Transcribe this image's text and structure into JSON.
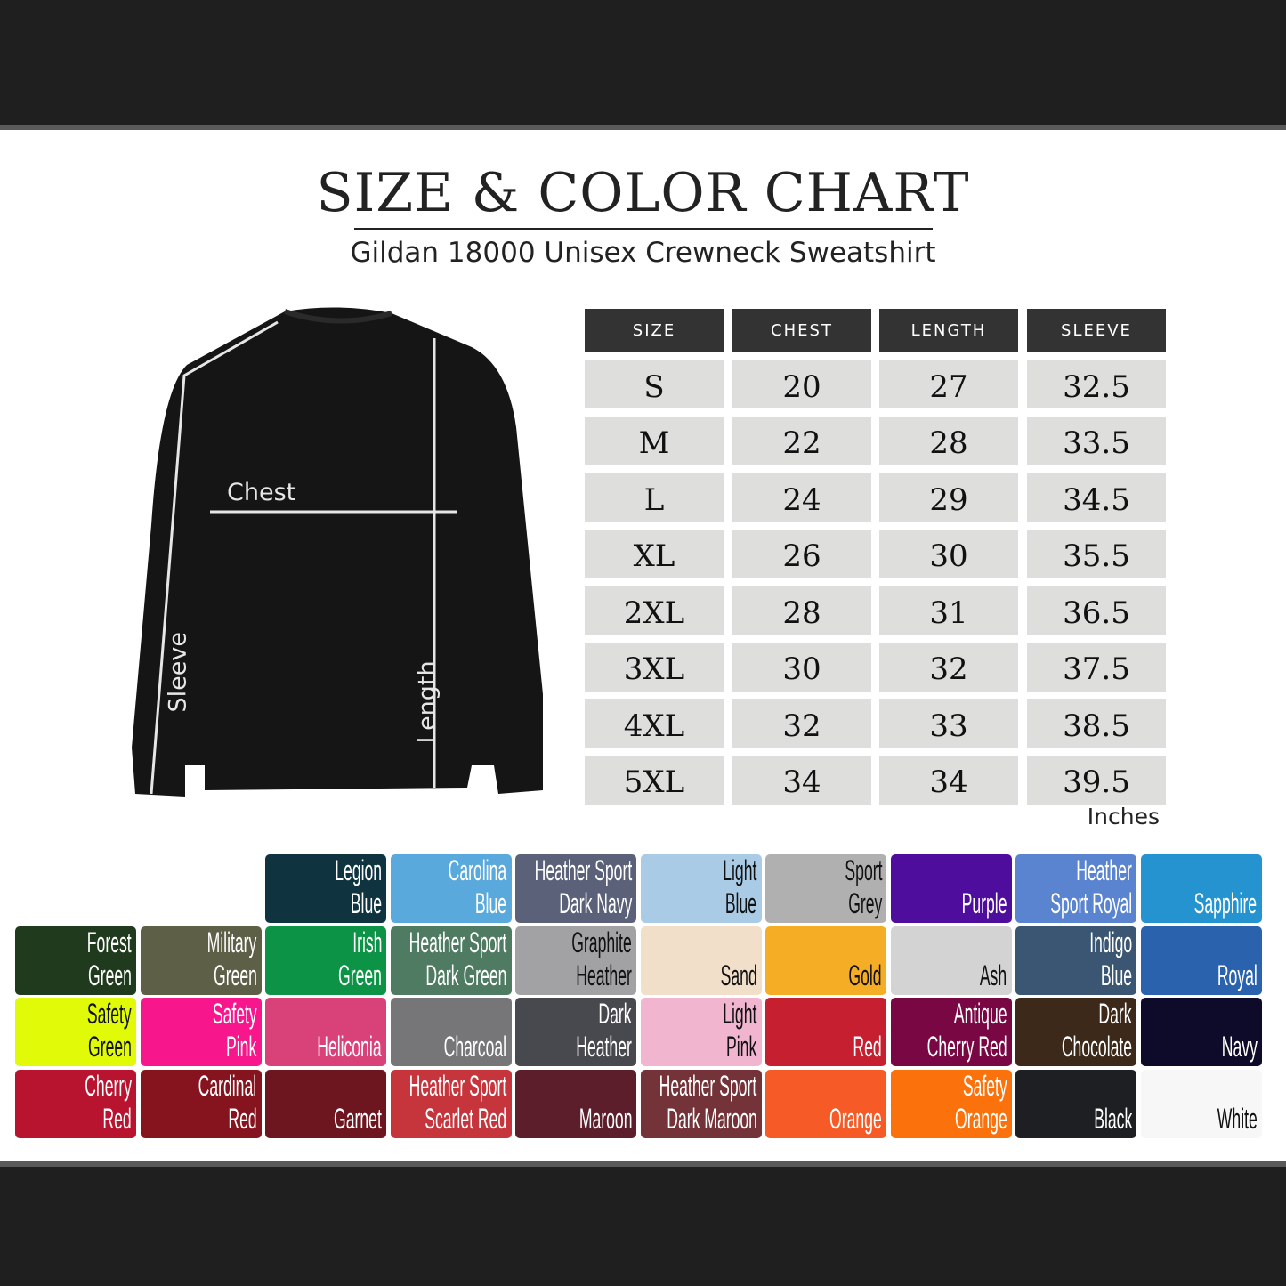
{
  "header": {
    "title": "SIZE & COLOR CHART",
    "subtitle": "Gildan 18000 Unisex Crewneck Sweatshirt"
  },
  "diagram": {
    "chest_label": "Chest",
    "sleeve_label": "Sleeve",
    "length_label": "Length",
    "shirt_color": "#151515"
  },
  "size_table": {
    "headers": [
      "SIZE",
      "CHEST",
      "LENGTH",
      "SLEEVE"
    ],
    "rows": [
      [
        "S",
        "20",
        "27",
        "32.5"
      ],
      [
        "M",
        "22",
        "28",
        "33.5"
      ],
      [
        "L",
        "24",
        "29",
        "34.5"
      ],
      [
        "XL",
        "26",
        "30",
        "35.5"
      ],
      [
        "2XL",
        "28",
        "31",
        "36.5"
      ],
      [
        "3XL",
        "30",
        "32",
        "37.5"
      ],
      [
        "4XL",
        "32",
        "33",
        "38.5"
      ],
      [
        "5XL",
        "34",
        "34",
        "39.5"
      ]
    ],
    "unit": "Inches"
  },
  "colors": [
    {
      "lines": [
        "Legion",
        "Blue"
      ],
      "hex": "#0f3440",
      "text": "#fff"
    },
    {
      "lines": [
        "Carolina",
        "Blue"
      ],
      "hex": "#5aa9dc",
      "text": "#fff"
    },
    {
      "lines": [
        "Heather Sport",
        "Dark Navy"
      ],
      "hex": "#5a6178",
      "text": "#fff"
    },
    {
      "lines": [
        "Light",
        "Blue"
      ],
      "hex": "#a9cbe6",
      "text": "#111"
    },
    {
      "lines": [
        "Sport",
        "Grey"
      ],
      "hex": "#b0b0b0",
      "text": "#111"
    },
    {
      "lines": [
        "Purple"
      ],
      "hex": "#4e0d9c",
      "text": "#fff"
    },
    {
      "lines": [
        "Heather",
        "Sport Royal"
      ],
      "hex": "#5a84cf",
      "text": "#fff"
    },
    {
      "lines": [
        "Sapphire"
      ],
      "hex": "#2593cf",
      "text": "#fff"
    },
    {
      "lines": [
        "Forest",
        "Green"
      ],
      "hex": "#1f3a1c",
      "text": "#fff"
    },
    {
      "lines": [
        "Military",
        "Green"
      ],
      "hex": "#5e5f47",
      "text": "#fff"
    },
    {
      "lines": [
        "Irish",
        "Green"
      ],
      "hex": "#0d9345",
      "text": "#fff"
    },
    {
      "lines": [
        "Heather Sport",
        "Dark Green"
      ],
      "hex": "#4f7b62",
      "text": "#fff"
    },
    {
      "lines": [
        "Graphite",
        "Heather"
      ],
      "hex": "#a2a2a4",
      "text": "#111"
    },
    {
      "lines": [
        "Sand"
      ],
      "hex": "#f2dfca",
      "text": "#111"
    },
    {
      "lines": [
        "Gold"
      ],
      "hex": "#f6ad26",
      "text": "#111"
    },
    {
      "lines": [
        "Ash"
      ],
      "hex": "#d3d3d3",
      "text": "#111"
    },
    {
      "lines": [
        "Indigo",
        "Blue"
      ],
      "hex": "#3b5672",
      "text": "#fff"
    },
    {
      "lines": [
        "Royal"
      ],
      "hex": "#2b62ad",
      "text": "#fff"
    },
    {
      "lines": [
        "Safety",
        "Green"
      ],
      "hex": "#e1fa08",
      "text": "#111"
    },
    {
      "lines": [
        "Safety",
        "Pink"
      ],
      "hex": "#f8168c",
      "text": "#fff"
    },
    {
      "lines": [
        "Heliconia"
      ],
      "hex": "#d94279",
      "text": "#fff"
    },
    {
      "lines": [
        "Charcoal"
      ],
      "hex": "#767678",
      "text": "#fff"
    },
    {
      "lines": [
        "Dark",
        "Heather"
      ],
      "hex": "#48494e",
      "text": "#fff"
    },
    {
      "lines": [
        "Light",
        "Pink"
      ],
      "hex": "#f1b5cf",
      "text": "#111"
    },
    {
      "lines": [
        "Red"
      ],
      "hex": "#c61f2f",
      "text": "#fff"
    },
    {
      "lines": [
        "Antique",
        "Cherry Red"
      ],
      "hex": "#790743",
      "text": "#fff"
    },
    {
      "lines": [
        "Dark",
        "Chocolate"
      ],
      "hex": "#3d2919",
      "text": "#fff"
    },
    {
      "lines": [
        "Navy"
      ],
      "hex": "#0d0b29",
      "text": "#fff"
    },
    {
      "lines": [
        "Cherry",
        "Red"
      ],
      "hex": "#b8142f",
      "text": "#fff"
    },
    {
      "lines": [
        "Cardinal",
        "Red"
      ],
      "hex": "#85141f",
      "text": "#fff"
    },
    {
      "lines": [
        "Garnet"
      ],
      "hex": "#6e1620",
      "text": "#fff"
    },
    {
      "lines": [
        "Heather Sport",
        "Scarlet Red"
      ],
      "hex": "#c6343c",
      "text": "#fff"
    },
    {
      "lines": [
        "Maroon"
      ],
      "hex": "#5c1e2a",
      "text": "#fff"
    },
    {
      "lines": [
        "Heather Sport",
        "Dark Maroon"
      ],
      "hex": "#733338",
      "text": "#fff"
    },
    {
      "lines": [
        "Orange"
      ],
      "hex": "#f65a26",
      "text": "#fff"
    },
    {
      "lines": [
        "Safety",
        "Orange"
      ],
      "hex": "#fb720c",
      "text": "#fff"
    },
    {
      "lines": [
        "Black"
      ],
      "hex": "#1e1f22",
      "text": "#fff"
    },
    {
      "lines": [
        "White"
      ],
      "hex": "#f7f7f7",
      "text": "#111"
    }
  ]
}
